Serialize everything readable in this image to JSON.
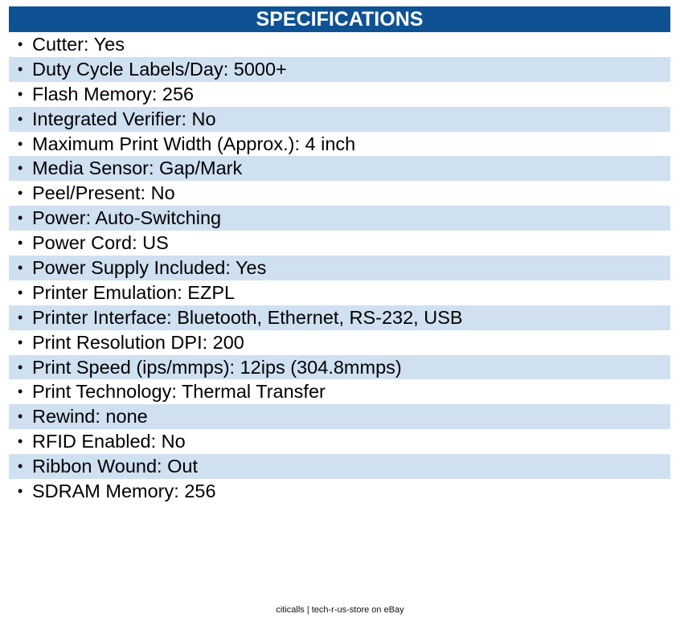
{
  "header": {
    "title": "SPECIFICATIONS"
  },
  "colors": {
    "header_bg": "#0e5294",
    "header_text": "#ffffff",
    "shaded_row": "#cfe0f1",
    "text": "#000000"
  },
  "specs": [
    {
      "label": "Cutter: Yes"
    },
    {
      "label": "Duty Cycle Labels/Day: 5000+"
    },
    {
      "label": "Flash Memory: 256"
    },
    {
      "label": "Integrated Verifier: No"
    },
    {
      "label": "Maximum Print Width (Approx.): 4 inch"
    },
    {
      "label": "Media Sensor: Gap/Mark"
    },
    {
      "label": "Peel/Present: No"
    },
    {
      "label": "Power: Auto-Switching"
    },
    {
      "label": "Power Cord: US"
    },
    {
      "label": "Power Supply Included: Yes"
    },
    {
      "label": "Printer Emulation: EZPL"
    },
    {
      "label": "Printer Interface: Bluetooth, Ethernet, RS-232, USB"
    },
    {
      "label": "Print Resolution DPI: 200"
    },
    {
      "label": "Print Speed (ips/mmps): 12ips (304.8mmps)"
    },
    {
      "label": "Print Technology: Thermal Transfer"
    },
    {
      "label": "Rewind: none"
    },
    {
      "label": "RFID Enabled: No"
    },
    {
      "label": "Ribbon Wound: Out"
    },
    {
      "label": "SDRAM Memory: 256"
    }
  ],
  "bullet_glyph": "•",
  "footer": {
    "text": "citicalls | tech-r-us-store on eBay"
  }
}
